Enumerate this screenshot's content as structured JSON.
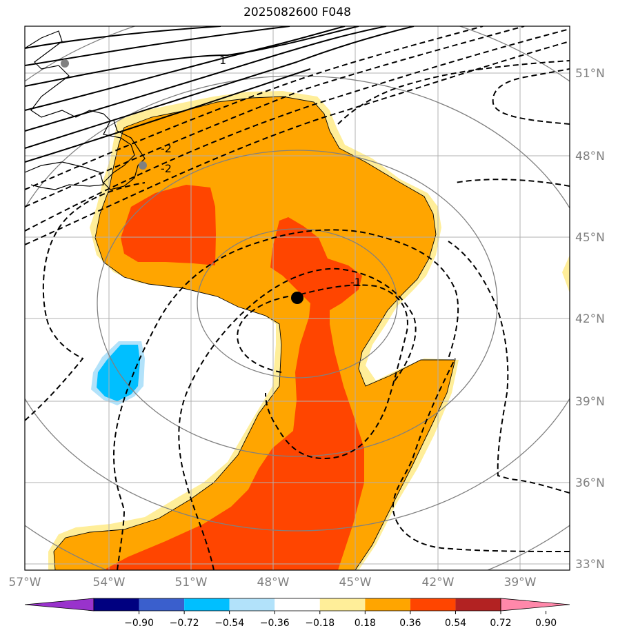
{
  "title": "2025082600 F048",
  "map": {
    "lon_labels": [
      "57°W",
      "54°W",
      "51°W",
      "48°W",
      "45°W",
      "42°W",
      "39°W"
    ],
    "lat_labels": [
      "51°N",
      "48°N",
      "45°N",
      "42°N",
      "39°N",
      "36°N",
      "33°N"
    ],
    "contour_labels": [
      "1",
      "-2",
      "-2",
      "-1"
    ],
    "center_marker": {
      "lon": -47.0,
      "lat": 42.8
    },
    "stations": [
      {
        "lon": -55.7,
        "lat": 51.4
      },
      {
        "lon": -52.7,
        "lat": 47.6
      }
    ]
  },
  "colorbar": {
    "ticks": [
      "−0.90",
      "−0.72",
      "−0.54",
      "−0.36",
      "−0.18",
      "0.18",
      "0.36",
      "0.54",
      "0.72",
      "0.90"
    ],
    "colors": [
      "#9933cc",
      "#000080",
      "#3a5fcd",
      "#00bfff",
      "#b2e2fa",
      "#ffffff",
      "#ffee99",
      "#ffa500",
      "#ff4500",
      "#b22222",
      "#ff88aa"
    ]
  },
  "colors": {
    "orange": "#ffa500",
    "red_orange": "#ff4500",
    "light_yellow": "#ffee99",
    "sky_blue": "#00bfff",
    "light_blue": "#b2e2fa"
  }
}
